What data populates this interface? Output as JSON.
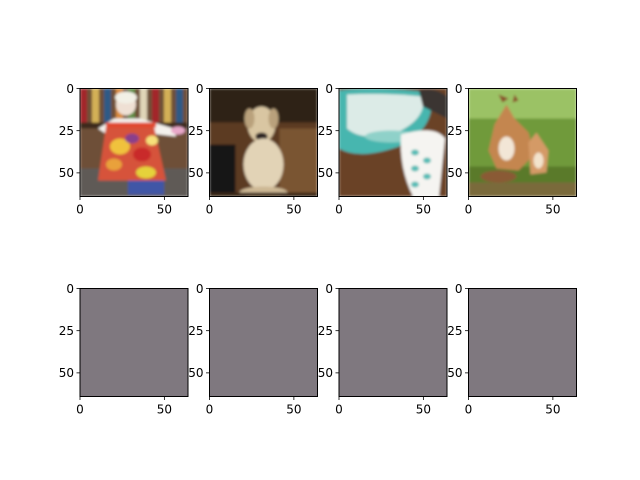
{
  "chart_data": {
    "type": "image-grid",
    "rows": 2,
    "cols": 4,
    "xlim": [
      0,
      64
    ],
    "ylim": [
      64,
      0
    ],
    "xticks": [
      0,
      50
    ],
    "yticks": [
      0,
      25,
      50
    ],
    "panels": [
      {
        "row": 0,
        "col": 0,
        "content": "photo: person in floral apron in front of bookshelves",
        "palette": [
          "#6a4a2e",
          "#d8c9b0",
          "#f0f0ef",
          "#d96a3a",
          "#c7312a",
          "#e8b43c",
          "#3f5aa8",
          "#5a5a5a"
        ]
      },
      {
        "row": 0,
        "col": 1,
        "content": "photo: light-colored dog sitting on wooden floor",
        "palette": [
          "#3a2416",
          "#6b4424",
          "#c4ab83",
          "#e4d5ba",
          "#8e6a45",
          "#1e1a18"
        ]
      },
      {
        "row": 0,
        "col": 2,
        "content": "photo: turquoise and white patterned bowls",
        "palette": [
          "#5c3a22",
          "#3fb3ae",
          "#d6e8e4",
          "#f3f2ef",
          "#2a2a2a",
          "#9a6a48"
        ]
      },
      {
        "row": 0,
        "col": 3,
        "content": "photo: fox and kit in green grass",
        "palette": [
          "#4f7a2a",
          "#8ab24a",
          "#c48a5a",
          "#f0e2d0",
          "#6e4a2e",
          "#b9c98a"
        ]
      },
      {
        "row": 1,
        "col": 0,
        "content": "uniform gray output",
        "fill": "#7f787f"
      },
      {
        "row": 1,
        "col": 1,
        "content": "uniform gray output",
        "fill": "#7f787f"
      },
      {
        "row": 1,
        "col": 2,
        "content": "uniform gray output",
        "fill": "#7f787f"
      },
      {
        "row": 1,
        "col": 3,
        "content": "uniform gray output",
        "fill": "#7f787f"
      }
    ]
  }
}
